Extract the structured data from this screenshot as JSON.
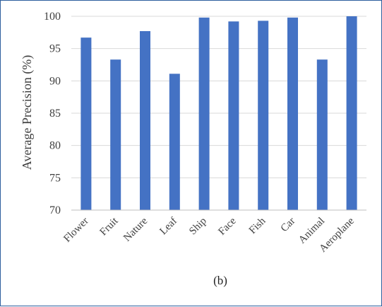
{
  "chart_data": {
    "type": "bar",
    "title": "",
    "xlabel": "",
    "ylabel": "Average Precision (%)",
    "caption": "(b)",
    "ylim": [
      70,
      100
    ],
    "yticks": [
      70,
      75,
      80,
      85,
      90,
      95,
      100
    ],
    "grid": true,
    "legend": "none",
    "categories": [
      "Flower",
      "Fruit",
      "Nature",
      "Leaf",
      "Ship",
      "Face",
      "Fish",
      "Car",
      "Animal",
      "Aeroplane"
    ],
    "values": [
      96.7,
      93.3,
      97.7,
      91.1,
      99.8,
      99.2,
      99.3,
      99.8,
      93.3,
      100.0
    ],
    "bar_color": "#4472c4",
    "grid_color": "#d9d9d9",
    "axis_color": "#bfbfbf"
  }
}
